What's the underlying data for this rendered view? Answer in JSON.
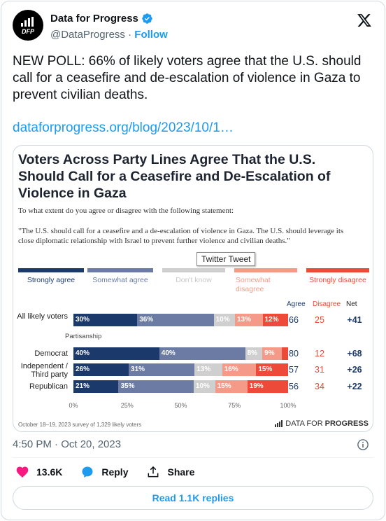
{
  "author": {
    "name": "Data for Progress",
    "handle": "@DataProgress",
    "separator": "·",
    "follow_label": "Follow",
    "avatar_text": "DFP"
  },
  "tweet": {
    "text": "NEW POLL: 66% of likely voters agree that the U.S. should call for a ceasefire and de-escalation of violence in Gaza to prevent civilian deaths.",
    "link": "dataforprogress.org/blog/2023/10/1…",
    "timestamp": "4:50 PM · Oct 20, 2023"
  },
  "tooltip": "Twitter Tweet",
  "actions": {
    "likes": "13.6K",
    "reply_label": "Reply",
    "share_label": "Share",
    "read_replies": "Read 1.1K replies"
  },
  "colors": {
    "accent": "#1d9bf0",
    "like": "#f91880",
    "strongly_agree": "#1b3a6b",
    "somewhat_agree": "#6b7ba3",
    "dont_know": "#cfcfcf",
    "somewhat_disagree": "#f59a88",
    "strongly_disagree": "#ee4a3a"
  },
  "icons": [
    "verified-badge-icon",
    "x-logo-icon",
    "heart-icon",
    "reply-icon",
    "share-icon",
    "info-icon",
    "bar-chart-icon"
  ],
  "chart_data": {
    "type": "bar",
    "stacked": true,
    "orientation": "horizontal",
    "title": "Voters Across Party Lines Agree That the U.S. Should Call for a Ceasefire and De-Escalation of Violence in Gaza",
    "question": "To what extent do you agree or disagree with the following statement:",
    "statement": "\"The U.S. should call for a ceasefire and a de-escalation of violence in Gaza. The U.S. should leverage its close diplomatic relationship with Israel to prevent further violence and civilian deaths.\"",
    "legend": [
      "Strongly agree",
      "Somewhat agree",
      "Don't know",
      "Somewhat disagree",
      "Strongly disagree"
    ],
    "legend_placement": "top",
    "column_headers": [
      "Agree",
      "Disagree",
      "Net"
    ],
    "group_label": "Partisanship",
    "categories": [
      "All likely voters",
      "Democrat",
      "Independent / Third party",
      "Republican"
    ],
    "series": [
      {
        "name": "Strongly agree",
        "values": [
          30,
          40,
          26,
          21
        ]
      },
      {
        "name": "Somewhat agree",
        "values": [
          36,
          40,
          31,
          35
        ]
      },
      {
        "name": "Don't know",
        "values": [
          10,
          8,
          13,
          10
        ]
      },
      {
        "name": "Somewhat disagree",
        "values": [
          13,
          9,
          16,
          15
        ]
      },
      {
        "name": "Strongly disagree",
        "values": [
          12,
          3,
          15,
          19
        ]
      }
    ],
    "agree": [
      66,
      80,
      57,
      56
    ],
    "disagree": [
      25,
      12,
      31,
      34
    ],
    "net": [
      "+41",
      "+68",
      "+26",
      "+22"
    ],
    "xticks": [
      "0%",
      "25%",
      "50%",
      "75%",
      "100%"
    ],
    "xlim": [
      0,
      100
    ],
    "grid": false,
    "footnote": "October 18–19, 2023 survey of 1,329 likely voters",
    "source": "DATA FOR PROGRESS",
    "source_plain": "DATA FOR",
    "source_bold": "PROGRESS"
  }
}
